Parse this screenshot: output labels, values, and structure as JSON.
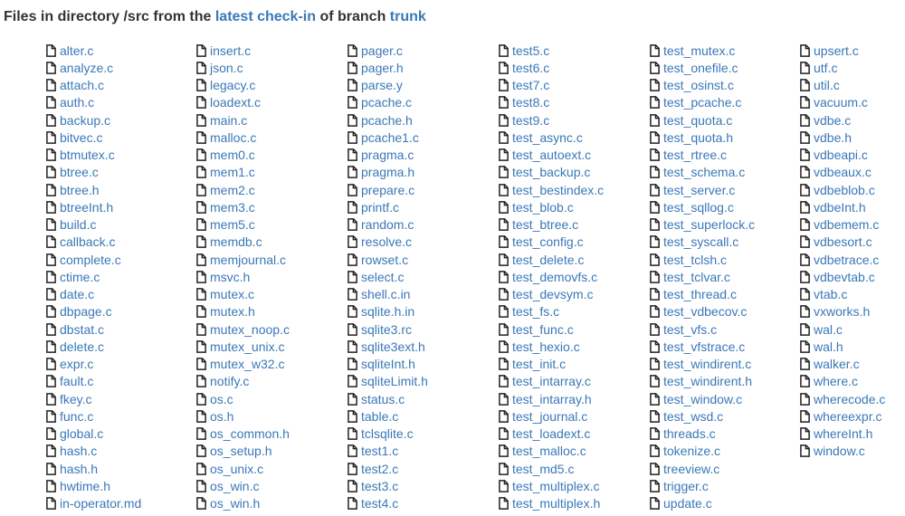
{
  "heading": {
    "prefix": "Files in directory /src from the ",
    "link1": "latest check-in",
    "middle": " of branch ",
    "link2": "trunk"
  },
  "columns": [
    [
      "alter.c",
      "analyze.c",
      "attach.c",
      "auth.c",
      "backup.c",
      "bitvec.c",
      "btmutex.c",
      "btree.c",
      "btree.h",
      "btreeInt.h",
      "build.c",
      "callback.c",
      "complete.c",
      "ctime.c",
      "date.c",
      "dbpage.c",
      "dbstat.c",
      "delete.c",
      "expr.c",
      "fault.c",
      "fkey.c",
      "func.c",
      "global.c",
      "hash.c",
      "hash.h",
      "hwtime.h",
      "in-operator.md"
    ],
    [
      "insert.c",
      "json.c",
      "legacy.c",
      "loadext.c",
      "main.c",
      "malloc.c",
      "mem0.c",
      "mem1.c",
      "mem2.c",
      "mem3.c",
      "mem5.c",
      "memdb.c",
      "memjournal.c",
      "msvc.h",
      "mutex.c",
      "mutex.h",
      "mutex_noop.c",
      "mutex_unix.c",
      "mutex_w32.c",
      "notify.c",
      "os.c",
      "os.h",
      "os_common.h",
      "os_setup.h",
      "os_unix.c",
      "os_win.c",
      "os_win.h"
    ],
    [
      "pager.c",
      "pager.h",
      "parse.y",
      "pcache.c",
      "pcache.h",
      "pcache1.c",
      "pragma.c",
      "pragma.h",
      "prepare.c",
      "printf.c",
      "random.c",
      "resolve.c",
      "rowset.c",
      "select.c",
      "shell.c.in",
      "sqlite.h.in",
      "sqlite3.rc",
      "sqlite3ext.h",
      "sqliteInt.h",
      "sqliteLimit.h",
      "status.c",
      "table.c",
      "tclsqlite.c",
      "test1.c",
      "test2.c",
      "test3.c",
      "test4.c"
    ],
    [
      "test5.c",
      "test6.c",
      "test7.c",
      "test8.c",
      "test9.c",
      "test_async.c",
      "test_autoext.c",
      "test_backup.c",
      "test_bestindex.c",
      "test_blob.c",
      "test_btree.c",
      "test_config.c",
      "test_delete.c",
      "test_demovfs.c",
      "test_devsym.c",
      "test_fs.c",
      "test_func.c",
      "test_hexio.c",
      "test_init.c",
      "test_intarray.c",
      "test_intarray.h",
      "test_journal.c",
      "test_loadext.c",
      "test_malloc.c",
      "test_md5.c",
      "test_multiplex.c",
      "test_multiplex.h"
    ],
    [
      "test_mutex.c",
      "test_onefile.c",
      "test_osinst.c",
      "test_pcache.c",
      "test_quota.c",
      "test_quota.h",
      "test_rtree.c",
      "test_schema.c",
      "test_server.c",
      "test_sqllog.c",
      "test_superlock.c",
      "test_syscall.c",
      "test_tclsh.c",
      "test_tclvar.c",
      "test_thread.c",
      "test_vdbecov.c",
      "test_vfs.c",
      "test_vfstrace.c",
      "test_windirent.c",
      "test_windirent.h",
      "test_window.c",
      "test_wsd.c",
      "threads.c",
      "tokenize.c",
      "treeview.c",
      "trigger.c",
      "update.c"
    ],
    [
      "upsert.c",
      "utf.c",
      "util.c",
      "vacuum.c",
      "vdbe.c",
      "vdbe.h",
      "vdbeapi.c",
      "vdbeaux.c",
      "vdbeblob.c",
      "vdbeInt.h",
      "vdbemem.c",
      "vdbesort.c",
      "vdbetrace.c",
      "vdbevtab.c",
      "vtab.c",
      "vxworks.h",
      "wal.c",
      "wal.h",
      "walker.c",
      "where.c",
      "wherecode.c",
      "whereexpr.c",
      "whereInt.h",
      "window.c"
    ]
  ]
}
